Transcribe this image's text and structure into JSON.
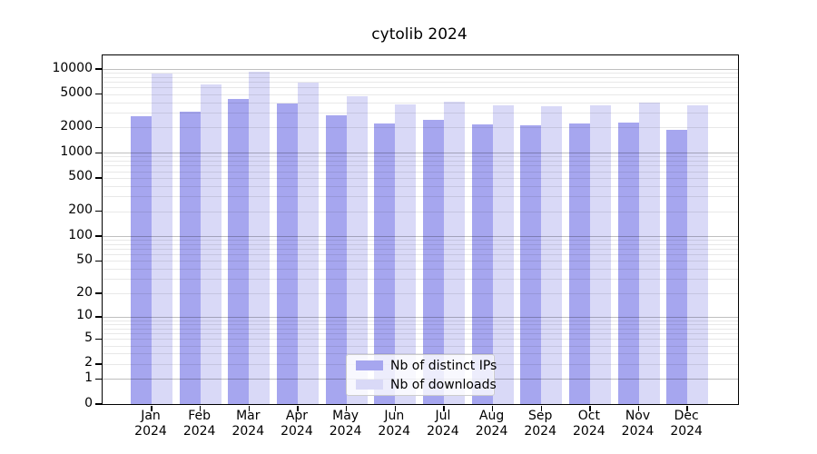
{
  "title": "cytolib 2024",
  "chart_data": {
    "type": "bar",
    "title": "cytolib 2024",
    "categories": [
      "Jan 2024",
      "Feb 2024",
      "Mar 2024",
      "Apr 2024",
      "May 2024",
      "Jun 2024",
      "Jul 2024",
      "Aug 2024",
      "Sep 2024",
      "Oct 2024",
      "Nov 2024",
      "Dec 2024"
    ],
    "series": [
      {
        "name": "Nb of distinct IPs",
        "color": "#a6a6ef",
        "values": [
          2700,
          3100,
          4400,
          3870,
          2770,
          2250,
          2490,
          2160,
          2110,
          2225,
          2320,
          1860
        ]
      },
      {
        "name": "Nb of downloads",
        "color": "#d9d9f7",
        "values": [
          8900,
          6600,
          9350,
          6900,
          4750,
          3820,
          4120,
          3640,
          3620,
          3640,
          3990,
          3640
        ]
      }
    ],
    "xlabel": "",
    "ylabel": "",
    "yscale": "log10(1+x)",
    "ylim": [
      0,
      14500
    ],
    "yticks": [
      10000,
      5000,
      2000,
      1000,
      500,
      200,
      100,
      50,
      20,
      10,
      5,
      2,
      1,
      0
    ],
    "major_grid_values": [
      10000,
      1000,
      100,
      10,
      1
    ],
    "grid": "both",
    "legend_position": "lower center"
  },
  "legend": {
    "items": [
      {
        "label": "Nb of distinct IPs",
        "color": "#a6a6ef"
      },
      {
        "label": "Nb of downloads",
        "color": "#d9d9f7"
      }
    ]
  },
  "colors": {
    "major_grid": "rgba(0,0,0,0.25)",
    "minor_grid": "rgba(0,0,0,0.09)",
    "spine": "#000000",
    "background": "#ffffff"
  }
}
